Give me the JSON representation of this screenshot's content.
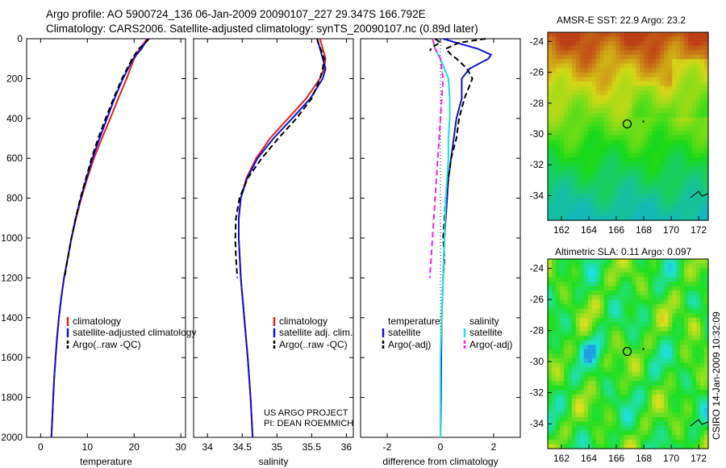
{
  "header": {
    "line1": "Argo profile: AO 5900724_136 06-Jan-2009 20090107_227 29.347S 166.792E",
    "line2": "Climatology: CARS2006. Satellite-adjusted climatology: synTS_20090107.nc (0.89d later)"
  },
  "credits": {
    "line1": "US ARGO PROJECT",
    "line2": "PI: DEAN ROEMMICH"
  },
  "side_label": "CSIRO 14-Jan-2009 10:32:09",
  "colors": {
    "climatology": "#dd2222",
    "satellite": "#1111cc",
    "argo": "#000000",
    "sal_satellite": "#22dddd",
    "sal_argo": "#ee22ee"
  },
  "chart_data": [
    {
      "type": "line",
      "xlabel": "temperature",
      "ylabel": "",
      "xlim": [
        -3,
        31
      ],
      "ylim": [
        2000,
        0
      ],
      "x_ticks": [
        "0",
        "10",
        "20",
        "30"
      ],
      "y_ticks": [
        "0",
        "200",
        "400",
        "600",
        "800",
        "1000",
        "1200",
        "1400",
        "1600",
        "1800",
        "2000"
      ],
      "legend": [
        "climatology",
        "satellite-adjusted climatology",
        "Argo(..raw -QC)"
      ],
      "series": [
        {
          "name": "climatology",
          "color_key": "climatology",
          "style": "solid",
          "y": [
            0,
            50,
            100,
            200,
            300,
            400,
            500,
            600,
            700,
            800,
            900,
            1000,
            1100,
            1200,
            1300,
            1400,
            1500,
            1600,
            1700,
            1800,
            1900,
            2000
          ],
          "x": [
            22.8,
            21.2,
            20.0,
            18.4,
            16.6,
            14.9,
            13.1,
            11.4,
            10.0,
            8.7,
            7.6,
            6.6,
            5.8,
            5.0,
            4.4,
            3.9,
            3.5,
            3.2,
            2.9,
            2.7,
            2.5,
            2.3
          ]
        },
        {
          "name": "satellite-adjusted climatology",
          "color_key": "satellite",
          "style": "solid",
          "y": [
            0,
            50,
            100,
            200,
            300,
            400,
            500,
            600,
            700,
            800,
            900,
            1000,
            1100,
            1200,
            1300,
            1400,
            1500,
            1600,
            1700,
            1800,
            1900,
            2000
          ],
          "x": [
            22.9,
            21.6,
            19.8,
            17.6,
            15.8,
            14.2,
            12.6,
            11.1,
            9.8,
            8.6,
            7.5,
            6.6,
            5.8,
            5.0,
            4.4,
            3.9,
            3.5,
            3.2,
            2.9,
            2.7,
            2.5,
            2.3
          ]
        },
        {
          "name": "Argo(..raw -QC)",
          "color_key": "argo",
          "style": "dashed",
          "y": [
            0,
            20,
            50,
            100,
            200,
            300,
            400,
            500,
            600,
            700,
            800,
            900,
            1000,
            1100,
            1200
          ],
          "x": [
            23.2,
            22.4,
            21.0,
            19.6,
            17.4,
            15.6,
            13.9,
            12.3,
            10.9,
            9.7,
            8.5,
            7.5,
            6.6,
            5.8,
            5.1
          ]
        }
      ]
    },
    {
      "type": "line",
      "xlabel": "salinity",
      "ylabel": "",
      "xlim": [
        33.8,
        36.1
      ],
      "ylim": [
        2000,
        0
      ],
      "x_ticks": [
        "34",
        "34.5",
        "35",
        "35.5",
        "36"
      ],
      "legend": [
        "climatology",
        "satellite adj. clim.",
        "Argo(..raw -QC)"
      ],
      "series": [
        {
          "name": "climatology",
          "color_key": "climatology",
          "style": "solid",
          "y": [
            0,
            50,
            100,
            150,
            200,
            300,
            400,
            500,
            600,
            700,
            800,
            900,
            1000,
            1200,
            1400,
            1600,
            1800,
            2000
          ],
          "x": [
            35.62,
            35.66,
            35.7,
            35.68,
            35.62,
            35.42,
            35.16,
            34.9,
            34.7,
            34.56,
            34.48,
            34.45,
            34.45,
            34.48,
            34.53,
            34.58,
            34.62,
            34.65
          ]
        },
        {
          "name": "satellite adj. clim.",
          "color_key": "satellite",
          "style": "solid",
          "y": [
            0,
            50,
            100,
            150,
            200,
            300,
            400,
            500,
            600,
            700,
            800,
            900,
            1000,
            1200,
            1400,
            1600,
            1800,
            2000
          ],
          "x": [
            35.58,
            35.62,
            35.66,
            35.7,
            35.66,
            35.48,
            35.22,
            34.95,
            34.72,
            34.57,
            34.48,
            34.45,
            34.45,
            34.48,
            34.53,
            34.58,
            34.62,
            34.65
          ]
        },
        {
          "name": "Argo(..raw -QC)",
          "color_key": "argo",
          "style": "dashed",
          "y": [
            0,
            30,
            60,
            100,
            150,
            200,
            300,
            400,
            500,
            600,
            700,
            800,
            900,
            1000,
            1100,
            1200
          ],
          "x": [
            35.58,
            35.6,
            35.64,
            35.68,
            35.66,
            35.62,
            35.5,
            35.28,
            35.02,
            34.78,
            34.58,
            34.46,
            34.41,
            34.4,
            34.41,
            34.43
          ]
        }
      ]
    },
    {
      "type": "line",
      "xlabel": "difference from climatology",
      "ylabel": "",
      "xlim": [
        -3,
        3
      ],
      "ylim": [
        2000,
        0
      ],
      "x_ticks": [
        "-2",
        "0",
        "2"
      ],
      "legend": [
        "temperature",
        "satellite",
        "Argo(-adj)",
        "salinity",
        "satellite",
        "Argo(-adj)"
      ],
      "series": [
        {
          "name": "satellite",
          "color_key": "satellite",
          "style": "solid",
          "y": [
            0,
            20,
            50,
            80,
            100,
            150,
            200,
            300,
            400,
            500,
            600,
            700,
            800,
            900,
            1000,
            1200,
            1400,
            1600,
            1800,
            2000
          ],
          "x": [
            0.1,
            0.6,
            1.4,
            1.9,
            1.8,
            1.1,
            0.8,
            0.8,
            0.6,
            0.5,
            0.4,
            0.3,
            0.25,
            0.2,
            0.15,
            0.1,
            0.05,
            0.03,
            0.02,
            0.0
          ]
        },
        {
          "name": "Argo(-adj)",
          "color_key": "argo",
          "style": "dashed",
          "y": [
            0,
            20,
            50,
            80,
            100,
            150,
            200,
            300,
            400,
            500,
            600,
            700,
            800,
            900,
            1000,
            1100,
            1200
          ],
          "x": [
            1.7,
            0.7,
            0.2,
            0.4,
            0.6,
            1.0,
            1.2,
            0.9,
            0.7,
            0.6,
            0.4,
            0.3,
            0.2,
            0.15,
            0.1,
            0.15,
            0.1
          ]
        },
        {
          "name": "satellite",
          "color_key": "sal_satellite",
          "style": "solid",
          "y": [
            0,
            50,
            100,
            200,
            300,
            400,
            500,
            600,
            800,
            1000,
            1200,
            1400,
            1600,
            1800,
            2000
          ],
          "x": [
            -0.3,
            -0.2,
            0.0,
            0.3,
            0.35,
            0.35,
            0.3,
            0.3,
            0.2,
            0.15,
            0.1,
            0.05,
            0.0,
            0.0,
            0.0
          ]
        },
        {
          "name": "Argo(-adj)",
          "color_key": "sal_argo",
          "style": "dashed",
          "y": [
            0,
            50,
            100,
            200,
            300,
            400,
            500,
            600,
            700,
            800,
            900,
            1000,
            1100,
            1200
          ],
          "x": [
            -0.3,
            -0.2,
            0.0,
            0.1,
            0.05,
            0.0,
            -0.05,
            -0.1,
            -0.15,
            -0.2,
            -0.25,
            -0.3,
            -0.35,
            -0.4
          ]
        },
        {
          "name": "Argo(-adj)",
          "color_key": "argo",
          "style": "dashed",
          "y": [
            0,
            20,
            40,
            60
          ],
          "x": [
            -0.2,
            0.0,
            -0.3,
            -0.4
          ]
        }
      ]
    },
    {
      "type": "heatmap",
      "title": "AMSR-E SST: 22.9 Argo: 23.2",
      "x_ticks": [
        "162",
        "164",
        "166",
        "168",
        "170",
        "172"
      ],
      "y_ticks": [
        "-24",
        "-26",
        "-28",
        "-30",
        "-32",
        "-34"
      ],
      "xlim": [
        161,
        172.7
      ],
      "ylim": [
        -35.6,
        -23.4
      ],
      "marker": {
        "lon": 166.792,
        "lat": -29.347
      }
    },
    {
      "type": "heatmap",
      "title": "Altimetric SLA: 0.11 Argo: 0.097",
      "x_ticks": [
        "162",
        "164",
        "166",
        "168",
        "170",
        "172"
      ],
      "y_ticks": [
        "-24",
        "-26",
        "-28",
        "-30",
        "-32",
        "-34"
      ],
      "xlim": [
        161,
        172.7
      ],
      "ylim": [
        -35.6,
        -23.4
      ],
      "marker": {
        "lon": 166.792,
        "lat": -29.347
      }
    }
  ]
}
